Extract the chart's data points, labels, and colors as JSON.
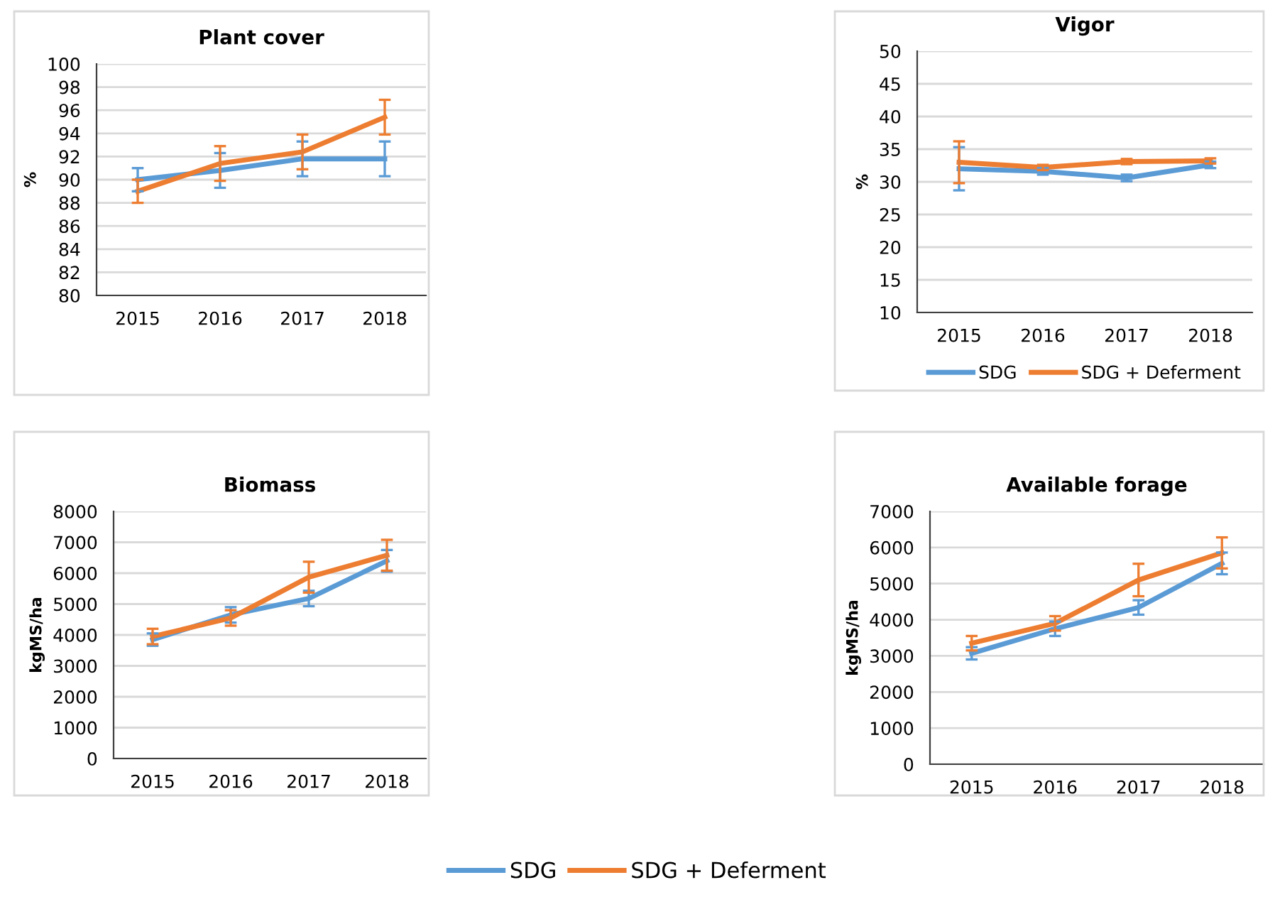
{
  "chart_data": [
    {
      "type": "line",
      "title": "Plant cover",
      "ylabel": "%",
      "categories": [
        "2015",
        "2016",
        "2017",
        "2018"
      ],
      "ylim": [
        80,
        100
      ],
      "yticks": [
        80,
        82,
        84,
        86,
        88,
        90,
        92,
        94,
        96,
        98,
        100
      ],
      "grid": "y",
      "marker": "none",
      "line_style": "solid",
      "legend": "bottom",
      "series": [
        {
          "name": "SDG",
          "color": "#5b9bd5",
          "values": [
            90.0,
            90.8,
            91.8,
            91.8
          ],
          "errors": [
            1.0,
            1.5,
            1.5,
            1.5
          ]
        },
        {
          "name": "SDG + Deferment",
          "color": "#ed7d31",
          "values": [
            89.0,
            91.4,
            92.4,
            95.4
          ],
          "errors": [
            1.0,
            1.5,
            1.5,
            1.5
          ]
        }
      ]
    },
    {
      "type": "line",
      "title": "Vigor",
      "ylabel": "%",
      "categories": [
        "2015",
        "2016",
        "2017",
        "2018"
      ],
      "ylim": [
        10,
        50
      ],
      "yticks": [
        10,
        15,
        20,
        25,
        30,
        35,
        40,
        45,
        50
      ],
      "grid": "y",
      "marker": "none",
      "line_style": "solid",
      "legend": "bottom",
      "series": [
        {
          "name": "SDG",
          "color": "#5b9bd5",
          "values": [
            32.0,
            31.6,
            30.6,
            32.6
          ],
          "errors": [
            3.3,
            0.5,
            0.5,
            0.5
          ]
        },
        {
          "name": "SDG + Deferment",
          "color": "#ed7d31",
          "values": [
            33.0,
            32.2,
            33.1,
            33.2
          ],
          "errors": [
            3.2,
            0.4,
            0.4,
            0.4
          ]
        }
      ]
    },
    {
      "type": "line",
      "title": "Biomass",
      "ylabel": "kgMS/ha",
      "categories": [
        "2015",
        "2016",
        "2017",
        "2018"
      ],
      "ylim": [
        0,
        8000
      ],
      "yticks": [
        0,
        1000,
        2000,
        3000,
        4000,
        5000,
        6000,
        7000,
        8000
      ],
      "grid": "y",
      "marker": "none",
      "line_style": "solid",
      "series": [
        {
          "color": "#5b9bd5",
          "values": [
            3850,
            4650,
            5180,
            6400
          ],
          "errors": [
            200,
            250,
            250,
            350
          ]
        },
        {
          "color": "#ed7d31",
          "values": [
            3950,
            4550,
            5870,
            6580
          ],
          "errors": [
            250,
            250,
            500,
            500
          ]
        }
      ]
    },
    {
      "type": "line",
      "title": "Available forage",
      "ylabel": "kgMS/ha",
      "categories": [
        "2015",
        "2016",
        "2017",
        "2018"
      ],
      "ylim": [
        0,
        7000
      ],
      "yticks": [
        0,
        1000,
        2000,
        3000,
        4000,
        5000,
        6000,
        7000
      ],
      "grid": "y",
      "marker": "none",
      "line_style": "solid",
      "series": [
        {
          "color": "#5b9bd5",
          "values": [
            3070,
            3750,
            4340,
            5560
          ],
          "errors": [
            170,
            200,
            200,
            300
          ]
        },
        {
          "color": "#ed7d31",
          "values": [
            3350,
            3900,
            5100,
            5850
          ],
          "errors": [
            200,
            200,
            450,
            430
          ]
        }
      ]
    }
  ]
}
